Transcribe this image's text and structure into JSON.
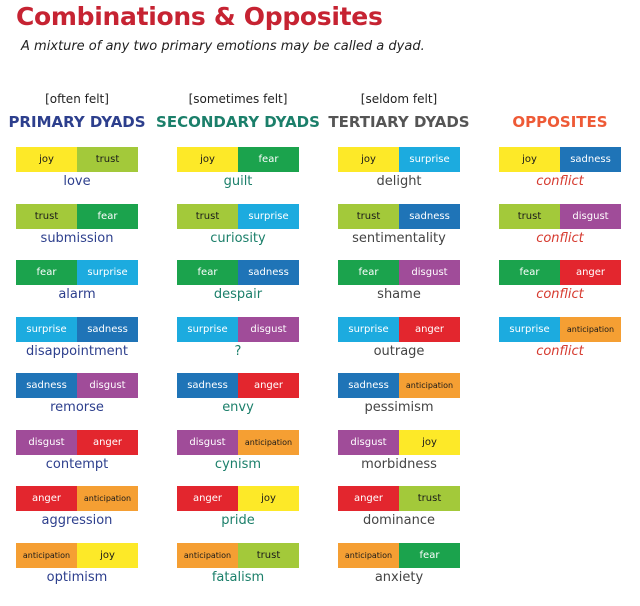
{
  "title": "Combinations & Opposites",
  "subtitle": "A mixture of any two primary emotions may be called a dyad.",
  "colors": {
    "joy": "#fde928",
    "trust": "#a3c93a",
    "fear": "#1ba34d",
    "surprise": "#1cabdf",
    "sadness": "#1f74b7",
    "disgust": "#a04c99",
    "anger": "#e3262e",
    "anticipation": "#f59f33"
  },
  "columns": [
    {
      "frequency": "[often felt]",
      "heading": "PRIMARY DYADS",
      "heading_color": "#2d3f8d",
      "name_color": "#2d3f8d",
      "italic": false,
      "dyads": [
        {
          "a": "joy",
          "b": "trust",
          "name": "love"
        },
        {
          "a": "trust",
          "b": "fear",
          "name": "submission"
        },
        {
          "a": "fear",
          "b": "surprise",
          "name": "alarm"
        },
        {
          "a": "surprise",
          "b": "sadness",
          "name": "disappointment"
        },
        {
          "a": "sadness",
          "b": "disgust",
          "name": "remorse"
        },
        {
          "a": "disgust",
          "b": "anger",
          "name": "contempt"
        },
        {
          "a": "anger",
          "b": "anticipation",
          "name": "aggression"
        },
        {
          "a": "anticipation",
          "b": "joy",
          "name": "optimism"
        }
      ]
    },
    {
      "frequency": "[sometimes felt]",
      "heading": "SECONDARY DYADS",
      "heading_color": "#1b7f6a",
      "name_color": "#1b7f6a",
      "italic": false,
      "dyads": [
        {
          "a": "joy",
          "b": "fear",
          "name": "guilt"
        },
        {
          "a": "trust",
          "b": "surprise",
          "name": "curiosity"
        },
        {
          "a": "fear",
          "b": "sadness",
          "name": "despair"
        },
        {
          "a": "surprise",
          "b": "disgust",
          "name": "?"
        },
        {
          "a": "sadness",
          "b": "anger",
          "name": "envy"
        },
        {
          "a": "disgust",
          "b": "anticipation",
          "name": "cynism"
        },
        {
          "a": "anger",
          "b": "joy",
          "name": "pride"
        },
        {
          "a": "anticipation",
          "b": "trust",
          "name": "fatalism"
        }
      ]
    },
    {
      "frequency": "[seldom felt]",
      "heading": "TERTIARY DYADS",
      "heading_color": "#555555",
      "name_color": "#444444",
      "italic": false,
      "dyads": [
        {
          "a": "joy",
          "b": "surprise",
          "name": "delight"
        },
        {
          "a": "trust",
          "b": "sadness",
          "name": "sentimentality"
        },
        {
          "a": "fear",
          "b": "disgust",
          "name": "shame"
        },
        {
          "a": "surprise",
          "b": "anger",
          "name": "outrage"
        },
        {
          "a": "sadness",
          "b": "anticipation",
          "name": "pessimism"
        },
        {
          "a": "disgust",
          "b": "joy",
          "name": "morbidness"
        },
        {
          "a": "anger",
          "b": "trust",
          "name": "dominance"
        },
        {
          "a": "anticipation",
          "b": "fear",
          "name": "anxiety"
        }
      ]
    },
    {
      "frequency": "",
      "heading": "OPPOSITES",
      "heading_color": "#ee5a36",
      "name_color": "#d63a2f",
      "italic": true,
      "dyads": [
        {
          "a": "joy",
          "b": "sadness",
          "name": "conflict"
        },
        {
          "a": "trust",
          "b": "disgust",
          "name": "conflict"
        },
        {
          "a": "fear",
          "b": "anger",
          "name": "conflict"
        },
        {
          "a": "surprise",
          "b": "anticipation",
          "name": "conflict"
        }
      ]
    }
  ]
}
